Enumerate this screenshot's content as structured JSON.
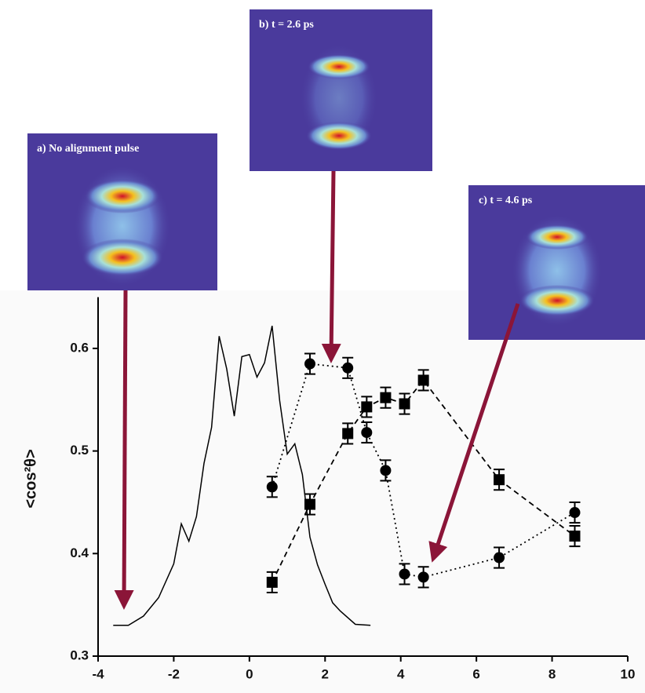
{
  "chart_data": {
    "type": "line",
    "y_label": "<cos²θ>",
    "xlim": [
      -4,
      10
    ],
    "xticks": [
      -4,
      -2,
      0,
      2,
      4,
      6,
      8,
      10
    ],
    "ylim": [
      0.3,
      0.65
    ],
    "yticks": [
      0.3,
      0.4,
      0.5,
      0.6
    ],
    "series": [
      {
        "color": "#000000",
        "marker": "circle",
        "linestyle": "dotted",
        "x": [
          0.6,
          1.6,
          2.6,
          3.1,
          3.6,
          4.1,
          4.6,
          6.6,
          8.6
        ],
        "values": [
          0.465,
          0.585,
          0.581,
          0.518,
          0.481,
          0.38,
          0.377,
          0.396,
          0.44
        ],
        "errors": [
          0.01,
          0.01,
          0.01,
          0.01,
          0.01,
          0.01,
          0.01,
          0.01,
          0.01
        ]
      },
      {
        "color": "#000000",
        "marker": "square",
        "linestyle": "dashed",
        "x": [
          0.6,
          1.6,
          2.6,
          3.1,
          3.6,
          4.1,
          4.6,
          6.6,
          8.6
        ],
        "values": [
          0.372,
          0.448,
          0.517,
          0.543,
          0.552,
          0.546,
          0.569,
          0.472,
          0.417
        ],
        "errors": [
          0.01,
          0.01,
          0.01,
          0.01,
          0.01,
          0.01,
          0.01,
          0.01,
          0.01
        ]
      },
      {
        "color": "#000000",
        "marker": "none",
        "linestyle": "solid",
        "x": [
          -3.6,
          -3.2,
          -2.8,
          -2.4,
          -2.0,
          -1.8,
          -1.6,
          -1.4,
          -1.2,
          -1.0,
          -0.8,
          -0.6,
          -0.4,
          -0.2,
          0,
          0.2,
          0.4,
          0.6,
          0.8,
          1.0,
          1.2,
          1.4,
          1.6,
          1.8,
          2.0,
          2.2,
          2.4,
          2.8,
          3.2
        ],
        "values": [
          0.33,
          0.33,
          0.339,
          0.357,
          0.39,
          0.429,
          0.412,
          0.436,
          0.488,
          0.523,
          0.612,
          0.58,
          0.534,
          0.592,
          0.594,
          0.572,
          0.586,
          0.622,
          0.549,
          0.497,
          0.507,
          0.477,
          0.416,
          0.389,
          0.37,
          0.352,
          0.344,
          0.331,
          0.33
        ]
      }
    ],
    "annotations": [
      "a) No alignment pulse",
      "b) t = 2.6 ps",
      "c) t = 4.6 ps"
    ]
  }
}
